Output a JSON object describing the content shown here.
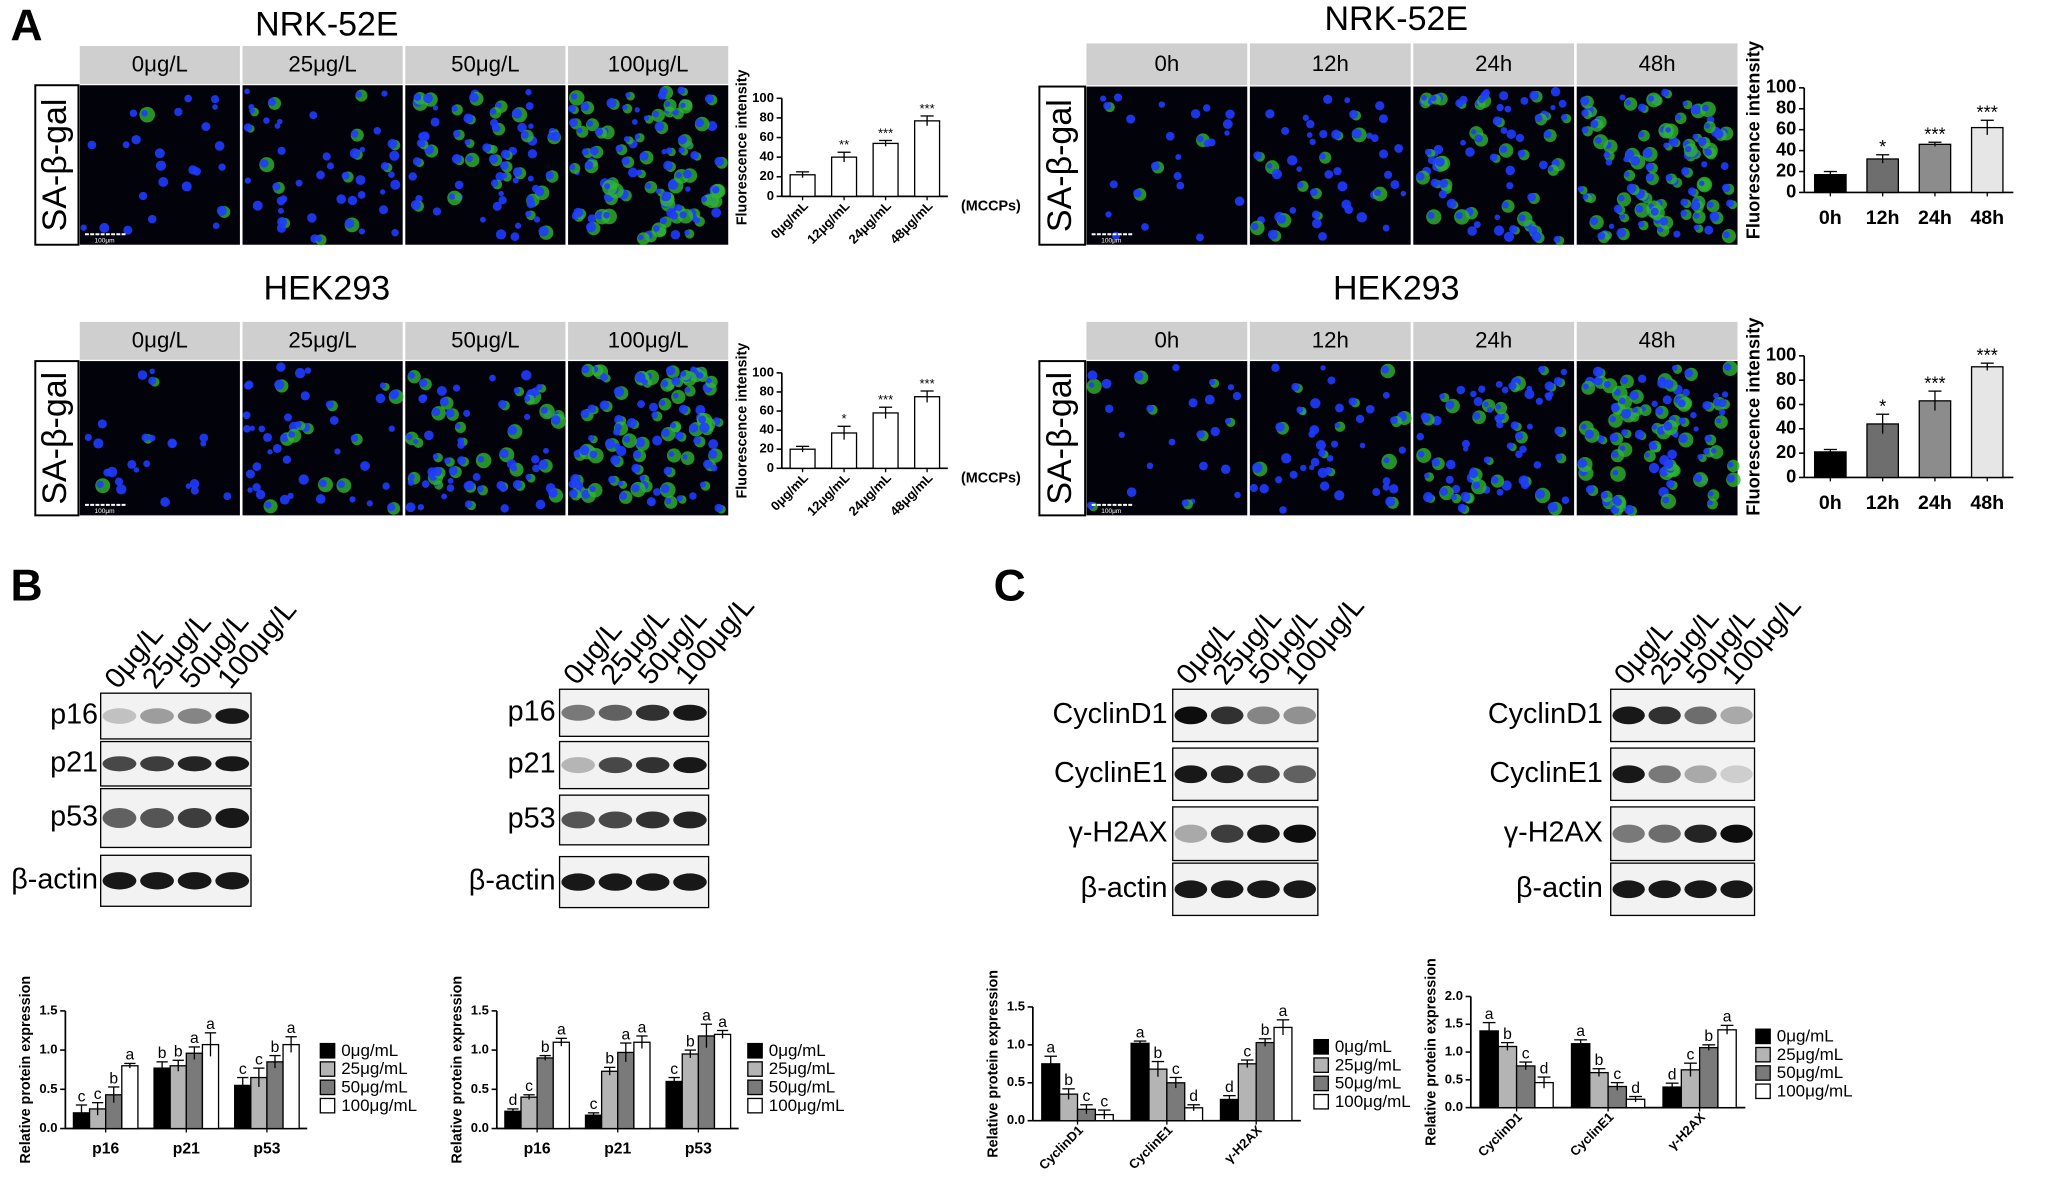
{
  "panel_labels": [
    "A",
    "B",
    "C"
  ],
  "image_panels": [
    {
      "title": "NRK-52E",
      "columns": [
        "0μg/L",
        "25μg/L",
        "50μg/L",
        "100μg/L"
      ],
      "row_label": "SA-β-gal",
      "scale_label": "100μm"
    },
    {
      "title": "HEK293",
      "columns": [
        "0μg/L",
        "25μg/L",
        "50μg/L",
        "100μg/L"
      ],
      "row_label": "SA-β-gal",
      "scale_label": "100μm"
    },
    {
      "title": "NRK-52E",
      "columns": [
        "0h",
        "12h",
        "24h",
        "48h"
      ],
      "row_label": "SA-β-gal",
      "scale_label": "100μm"
    },
    {
      "title": "HEK293",
      "columns": [
        "0h",
        "12h",
        "24h",
        "48h"
      ],
      "row_label": "SA-β-gal",
      "scale_label": "100μm"
    }
  ],
  "blots": [
    {
      "lanes": [
        "0μg/L",
        "25μg/L",
        "50μg/L",
        "100μg/L"
      ],
      "rows": [
        "p16",
        "p21",
        "p53",
        "β-actin"
      ]
    },
    {
      "lanes": [
        "0μg/L",
        "25μg/L",
        "50μg/L",
        "100μg/L"
      ],
      "rows": [
        "p16",
        "p21",
        "p53",
        "β-actin"
      ]
    },
    {
      "lanes": [
        "0μg/L",
        "25μg/L",
        "50μg/L",
        "100μg/L"
      ],
      "rows": [
        "CyclinD1",
        "CyclinE1",
        "γ-H2AX",
        "β-actin"
      ]
    },
    {
      "lanes": [
        "0μg/L",
        "25μg/L",
        "50μg/L",
        "100μg/L"
      ],
      "rows": [
        "CyclinD1",
        "CyclinE1",
        "γ-H2AX",
        "β-actin"
      ]
    }
  ],
  "chart_data": [
    {
      "type": "bar",
      "ylabel": "Fluorescence intensity",
      "x_unit": "(MCCPs)",
      "xtick_rotation": 45,
      "categories": [
        "0μg/mL",
        "12μg/mL",
        "24μg/mL",
        "48μg/mL"
      ],
      "values": [
        22,
        40,
        54,
        77
      ],
      "errors": [
        3,
        5,
        3,
        5
      ],
      "annotations": [
        null,
        "**",
        "***",
        "***"
      ],
      "colors": [
        "#ffffff",
        "#ffffff",
        "#ffffff",
        "#ffffff"
      ],
      "ylim": [
        0,
        100
      ],
      "yticks": [
        0,
        20,
        40,
        60,
        80,
        100
      ]
    },
    {
      "type": "bar",
      "ylabel": "Fluorescence intensity",
      "x_unit": "(MCCPs)",
      "xtick_rotation": 45,
      "categories": [
        "0μg/mL",
        "12μg/mL",
        "24μg/mL",
        "48μg/mL"
      ],
      "values": [
        20,
        37,
        58,
        75
      ],
      "errors": [
        3,
        7,
        6,
        6
      ],
      "annotations": [
        null,
        "*",
        "***",
        "***"
      ],
      "colors": [
        "#ffffff",
        "#ffffff",
        "#ffffff",
        "#ffffff"
      ],
      "ylim": [
        0,
        100
      ],
      "yticks": [
        0,
        20,
        40,
        60,
        80,
        100
      ]
    },
    {
      "type": "bar",
      "ylabel": "Fluorescence intensity",
      "xtick_rotation": 0,
      "categories": [
        "0h",
        "12h",
        "24h",
        "48h"
      ],
      "values": [
        17,
        32,
        46,
        62
      ],
      "errors": [
        3,
        4,
        2,
        7
      ],
      "annotations": [
        null,
        "*",
        "***",
        "***"
      ],
      "colors": [
        "#000000",
        "#6e6e6e",
        "#8c8c8c",
        "#e6e6e6"
      ],
      "ylim": [
        0,
        100
      ],
      "yticks": [
        0,
        20,
        40,
        60,
        80,
        100
      ]
    },
    {
      "type": "bar",
      "ylabel": "Fluorescence intensity",
      "xtick_rotation": 0,
      "categories": [
        "0h",
        "12h",
        "24h",
        "48h"
      ],
      "values": [
        21,
        44,
        63,
        91
      ],
      "errors": [
        2,
        8,
        8,
        3
      ],
      "annotations": [
        null,
        "*",
        "***",
        "***"
      ],
      "colors": [
        "#000000",
        "#6e6e6e",
        "#8c8c8c",
        "#e6e6e6"
      ],
      "ylim": [
        0,
        100
      ],
      "yticks": [
        0,
        20,
        40,
        60,
        80,
        100
      ]
    },
    {
      "type": "grouped_bar",
      "ylabel": "Relative protein expression",
      "xtick_rotation": 0,
      "legend": "right",
      "categories": [
        "p16",
        "p21",
        "p53"
      ],
      "series": [
        {
          "name": "0μg/mL",
          "color": "#000000",
          "values": [
            0.2,
            0.77,
            0.55
          ],
          "errors": [
            0.1,
            0.08,
            0.1
          ],
          "annotations": [
            "c",
            "b",
            "c"
          ]
        },
        {
          "name": "25μg/mL",
          "color": "#b4b4b4",
          "values": [
            0.25,
            0.8,
            0.65
          ],
          "errors": [
            0.08,
            0.07,
            0.12
          ],
          "annotations": [
            "c",
            "b",
            "c"
          ]
        },
        {
          "name": "50μg/mL",
          "color": "#7a7a7a",
          "values": [
            0.43,
            0.96,
            0.85
          ],
          "errors": [
            0.1,
            0.08,
            0.08
          ],
          "annotations": [
            "b",
            "a",
            "b"
          ]
        },
        {
          "name": "100μg/mL",
          "color": "#ffffff",
          "values": [
            0.8,
            1.07,
            1.07
          ],
          "errors": [
            0.03,
            0.15,
            0.1
          ],
          "annotations": [
            "a",
            "a",
            "a"
          ]
        }
      ],
      "ylim": [
        0,
        1.5
      ],
      "yticks": [
        {
          "value": 0,
          "label": "0.0"
        },
        0.5,
        {
          "value": 1,
          "label": "1.0"
        },
        1.5
      ]
    },
    {
      "type": "grouped_bar",
      "ylabel": "Relative protein expression",
      "xtick_rotation": 0,
      "legend": "right",
      "categories": [
        "p16",
        "p21",
        "p53"
      ],
      "series": [
        {
          "name": "0μg/mL",
          "color": "#000000",
          "values": [
            0.22,
            0.17,
            0.6
          ],
          "errors": [
            0.03,
            0.03,
            0.05
          ],
          "annotations": [
            "d",
            "c",
            "c"
          ]
        },
        {
          "name": "25μg/mL",
          "color": "#b4b4b4",
          "values": [
            0.4,
            0.73,
            0.95
          ],
          "errors": [
            0.03,
            0.05,
            0.05
          ],
          "annotations": [
            "c",
            "b",
            "b"
          ]
        },
        {
          "name": "50μg/mL",
          "color": "#7a7a7a",
          "values": [
            0.9,
            0.97,
            1.18
          ],
          "errors": [
            0.03,
            0.12,
            0.15
          ],
          "annotations": [
            "b",
            "a",
            "a"
          ]
        },
        {
          "name": "100μg/mL",
          "color": "#ffffff",
          "values": [
            1.1,
            1.1,
            1.2
          ],
          "errors": [
            0.05,
            0.08,
            0.05
          ],
          "annotations": [
            "a",
            "a",
            "a"
          ]
        }
      ],
      "ylim": [
        0,
        1.5
      ],
      "yticks": [
        {
          "value": 0,
          "label": "0.0"
        },
        0.5,
        {
          "value": 1,
          "label": "1.0"
        },
        1.5
      ]
    },
    {
      "type": "grouped_bar",
      "ylabel": "Relative protein expression",
      "xtick_rotation": 45,
      "legend": "right",
      "categories": [
        "CyclinD1",
        "CyclinE1",
        "γ-H2AX"
      ],
      "series": [
        {
          "name": "0μg/mL",
          "color": "#000000",
          "values": [
            0.75,
            1.02,
            0.28
          ],
          "errors": [
            0.1,
            0.03,
            0.05
          ],
          "annotations": [
            "a",
            "a",
            "d"
          ]
        },
        {
          "name": "25μg/mL",
          "color": "#b4b4b4",
          "values": [
            0.35,
            0.68,
            0.75
          ],
          "errors": [
            0.07,
            0.1,
            0.05
          ],
          "annotations": [
            "b",
            "b",
            "c"
          ]
        },
        {
          "name": "50μg/mL",
          "color": "#7a7a7a",
          "values": [
            0.15,
            0.5,
            1.03
          ],
          "errors": [
            0.06,
            0.07,
            0.05
          ],
          "annotations": [
            "c",
            "c",
            "b"
          ]
        },
        {
          "name": "100μg/mL",
          "color": "#ffffff",
          "values": [
            0.08,
            0.17,
            1.23
          ],
          "errors": [
            0.06,
            0.04,
            0.1
          ],
          "annotations": [
            "c",
            "d",
            "a"
          ]
        }
      ],
      "ylim": [
        0,
        1.5
      ],
      "yticks": [
        {
          "value": 0,
          "label": "0.0"
        },
        0.5,
        {
          "value": 1,
          "label": "1.0"
        },
        1.5
      ]
    },
    {
      "type": "grouped_bar",
      "ylabel": "Relative protein expression",
      "xtick_rotation": 45,
      "legend": "right",
      "categories": [
        "CyclinD1",
        "CyclinE1",
        "γ-H2AX"
      ],
      "series": [
        {
          "name": "0μg/mL",
          "color": "#000000",
          "values": [
            1.38,
            1.15,
            0.37
          ],
          "errors": [
            0.15,
            0.07,
            0.07
          ],
          "annotations": [
            "a",
            "a",
            "d"
          ]
        },
        {
          "name": "25μg/mL",
          "color": "#b4b4b4",
          "values": [
            1.1,
            0.63,
            0.68
          ],
          "errors": [
            0.07,
            0.07,
            0.12
          ],
          "annotations": [
            "b",
            "b",
            "c"
          ]
        },
        {
          "name": "50μg/mL",
          "color": "#7a7a7a",
          "values": [
            0.75,
            0.38,
            1.08
          ],
          "errors": [
            0.07,
            0.07,
            0.05
          ],
          "annotations": [
            "c",
            "c",
            "b"
          ]
        },
        {
          "name": "100μg/mL",
          "color": "#ffffff",
          "values": [
            0.45,
            0.15,
            1.4
          ],
          "errors": [
            0.1,
            0.05,
            0.08
          ],
          "annotations": [
            "d",
            "d",
            "a"
          ]
        }
      ],
      "ylim": [
        0,
        2
      ],
      "yticks": [
        {
          "value": 0,
          "label": "0.0"
        },
        0.5,
        {
          "value": 1,
          "label": "1.0"
        },
        1.5,
        {
          "value": 2,
          "label": "2.0"
        }
      ]
    }
  ]
}
